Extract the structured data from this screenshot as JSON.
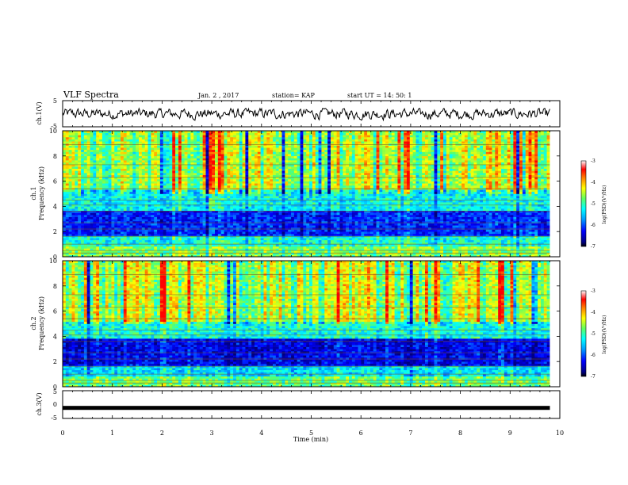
{
  "header": {
    "title": "VLF Spectra",
    "date": "Jan. 2 , 2017",
    "station": "station= KAP",
    "start": "start UT =  14: 50: 1"
  },
  "chart_data": [
    {
      "type": "line",
      "panel": "ch1-waveform",
      "ylabel": "ch.1(V)",
      "ylim": [
        -5,
        5
      ],
      "yticks": [
        "5",
        "-5"
      ],
      "xlim": [
        0,
        10
      ],
      "description_units": "V",
      "amplitude_range": [
        -2.5,
        2.0
      ]
    },
    {
      "type": "heatmap",
      "panel": "ch1-spectrogram",
      "ylabel": "ch.1\nFrequency (kHz)",
      "ylabel_lines": [
        "ch.1",
        "Frequency (kHz)"
      ],
      "ylim": [
        0,
        10
      ],
      "yticks": [
        "10",
        "8",
        "6",
        "4",
        "2",
        "0"
      ],
      "xlim": [
        0,
        9.8
      ],
      "colorbar": {
        "label": "log(PSD)(V²/Hz)",
        "range": [
          -7,
          -3
        ],
        "ticks": [
          "-3",
          "-4",
          "-5",
          "-6",
          "-7"
        ]
      },
      "bands_khz": [
        {
          "from": 0,
          "to": 0.8,
          "level": -4.7
        },
        {
          "from": 0.8,
          "to": 1.6,
          "level": -5.2
        },
        {
          "from": 1.6,
          "to": 3.6,
          "level": -6.3
        },
        {
          "from": 3.6,
          "to": 5.4,
          "level": -5.3
        },
        {
          "from": 5.4,
          "to": 10,
          "level": -4.6
        }
      ]
    },
    {
      "type": "heatmap",
      "panel": "ch2-spectrogram",
      "ylabel": "ch.2\nFrequency (kHz)",
      "ylabel_lines": [
        "ch.2",
        "Frequency (kHz)"
      ],
      "ylim": [
        0,
        10
      ],
      "yticks": [
        "10",
        "8",
        "6",
        "4",
        "2",
        "0"
      ],
      "xlim": [
        0,
        9.8
      ],
      "colorbar": {
        "label": "log(PSD)(V²/Hz)",
        "range": [
          -7,
          -3
        ],
        "ticks": [
          "-3",
          "-4",
          "-5",
          "-6",
          "-7"
        ]
      },
      "bands_khz": [
        {
          "from": 0,
          "to": 0.8,
          "level": -4.8
        },
        {
          "from": 0.8,
          "to": 1.6,
          "level": -5.4
        },
        {
          "from": 1.6,
          "to": 3.8,
          "level": -6.5
        },
        {
          "from": 3.8,
          "to": 5.2,
          "level": -5.2
        },
        {
          "from": 5.2,
          "to": 10,
          "level": -4.5
        }
      ]
    },
    {
      "type": "line",
      "panel": "ch3-waveform",
      "ylabel": "ch.3(V)",
      "ylim": [
        -5,
        5
      ],
      "yticks": [
        "5",
        "0",
        "-5"
      ],
      "xlim": [
        0,
        10
      ],
      "constant_value": -1.2,
      "xlabel": "Time (min)",
      "xticks": [
        "0",
        "1",
        "2",
        "3",
        "4",
        "5",
        "6",
        "7",
        "8",
        "9",
        "10"
      ]
    }
  ],
  "colors": {
    "axis": "#000000",
    "colormap": [
      "#00007f",
      "#0000ff",
      "#00a0ff",
      "#00ffff",
      "#60ff60",
      "#ffff00",
      "#ff8000",
      "#ff0000",
      "#7f0000"
    ]
  }
}
